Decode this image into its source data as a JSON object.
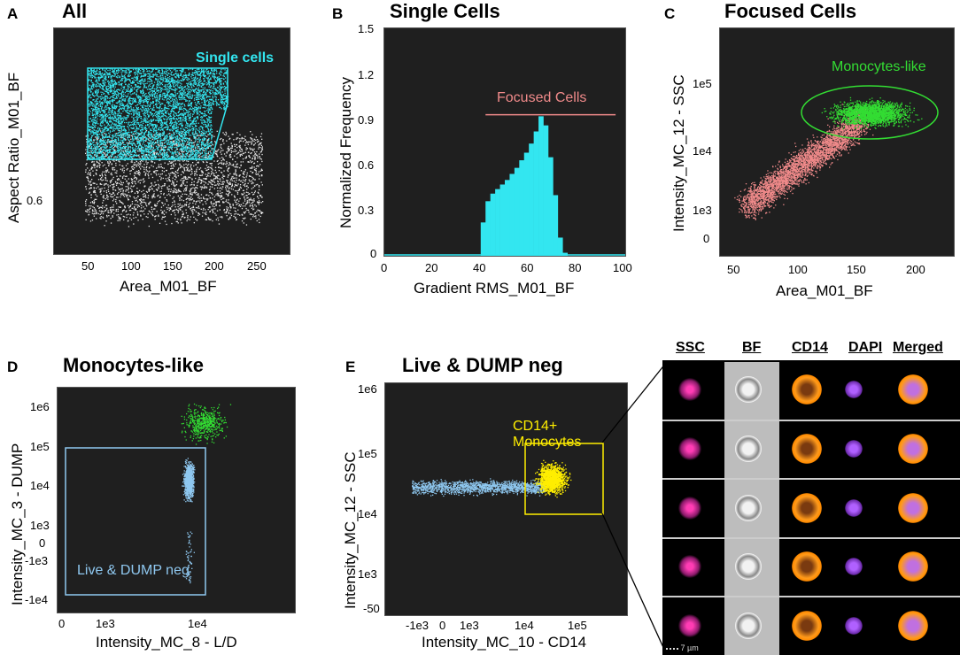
{
  "panels": {
    "A": {
      "letter": "A",
      "title": "All",
      "xlabel": "Area_M01_BF",
      "ylabel": "Aspect Ratio_M01_BF",
      "xticks": [
        "50",
        "100",
        "150",
        "200",
        "250"
      ],
      "yticks": [
        "0.6"
      ],
      "gate": "Single cells"
    },
    "B": {
      "letter": "B",
      "title": "Single Cells",
      "xlabel": "Gradient RMS_M01_BF",
      "ylabel": "Normalized Frequency",
      "xticks": [
        "0",
        "20",
        "40",
        "60",
        "80",
        "100"
      ],
      "yticks": [
        "1.5",
        "1.2",
        "0.9",
        "0.6",
        "0.3",
        "0"
      ],
      "gate": "Focused Cells"
    },
    "C": {
      "letter": "C",
      "title": "Focused Cells",
      "xlabel": "Area_M01_BF",
      "ylabel": "Intensity_MC_12 - SSC",
      "xticks": [
        "50",
        "100",
        "150",
        "200"
      ],
      "yticks": [
        "1e5",
        "1e4",
        "1e3",
        "0"
      ],
      "gate": "Monocytes-like"
    },
    "D": {
      "letter": "D",
      "title": "Monocytes-like",
      "xlabel": "Intensity_MC_8 - L/D",
      "ylabel": "Intensity_MC_3 - DUMP",
      "xticks": [
        "0",
        "1e3",
        "1e4"
      ],
      "yticks": [
        "1e6",
        "1e5",
        "1e4",
        "1e3",
        "0",
        "-1e3",
        "-1e4"
      ],
      "gate": "Live & DUMP neg"
    },
    "E": {
      "letter": "E",
      "title": "Live & DUMP neg",
      "xlabel": "Intensity_MC_10 - CD14",
      "ylabel": "Intensity_MC_12 - SSC",
      "xticks": [
        "-1e3",
        "0",
        "1e3",
        "1e4",
        "1e5"
      ],
      "yticks": [
        "1e6",
        "1e5",
        "1e4",
        "1e3",
        "-50"
      ],
      "gate": "CD14+ Monocytes"
    }
  },
  "gallery": {
    "headers": [
      "SSC",
      "BF",
      "CD14",
      "DAPI",
      "Merged"
    ],
    "scale_bar": "7 µm",
    "rows": 5
  },
  "colors": {
    "cyan": "#33e6f0",
    "salmon": "#f08a8a",
    "green": "#33dd33",
    "lightblue": "#8fc8f0",
    "yellow": "#ffee00",
    "plotbg": "#1f1f1f"
  },
  "chart_data": [
    {
      "type": "histogram",
      "title": "Single Cells",
      "xlabel": "Gradient RMS_M01_BF",
      "ylabel": "Normalized Frequency",
      "xlim": [
        0,
        100
      ],
      "ylim": [
        0,
        1.5
      ],
      "x": [
        40,
        42,
        44,
        46,
        48,
        50,
        52,
        54,
        56,
        58,
        60,
        62,
        64,
        66,
        68,
        70,
        72,
        74
      ],
      "values": [
        0.22,
        0.36,
        0.41,
        0.44,
        0.47,
        0.5,
        0.54,
        0.58,
        0.63,
        0.68,
        0.74,
        0.82,
        0.92,
        0.86,
        0.65,
        0.4,
        0.12,
        0.02
      ],
      "gate": {
        "label": "Focused Cells",
        "range": [
          42,
          96
        ],
        "y": 0.93
      }
    }
  ]
}
